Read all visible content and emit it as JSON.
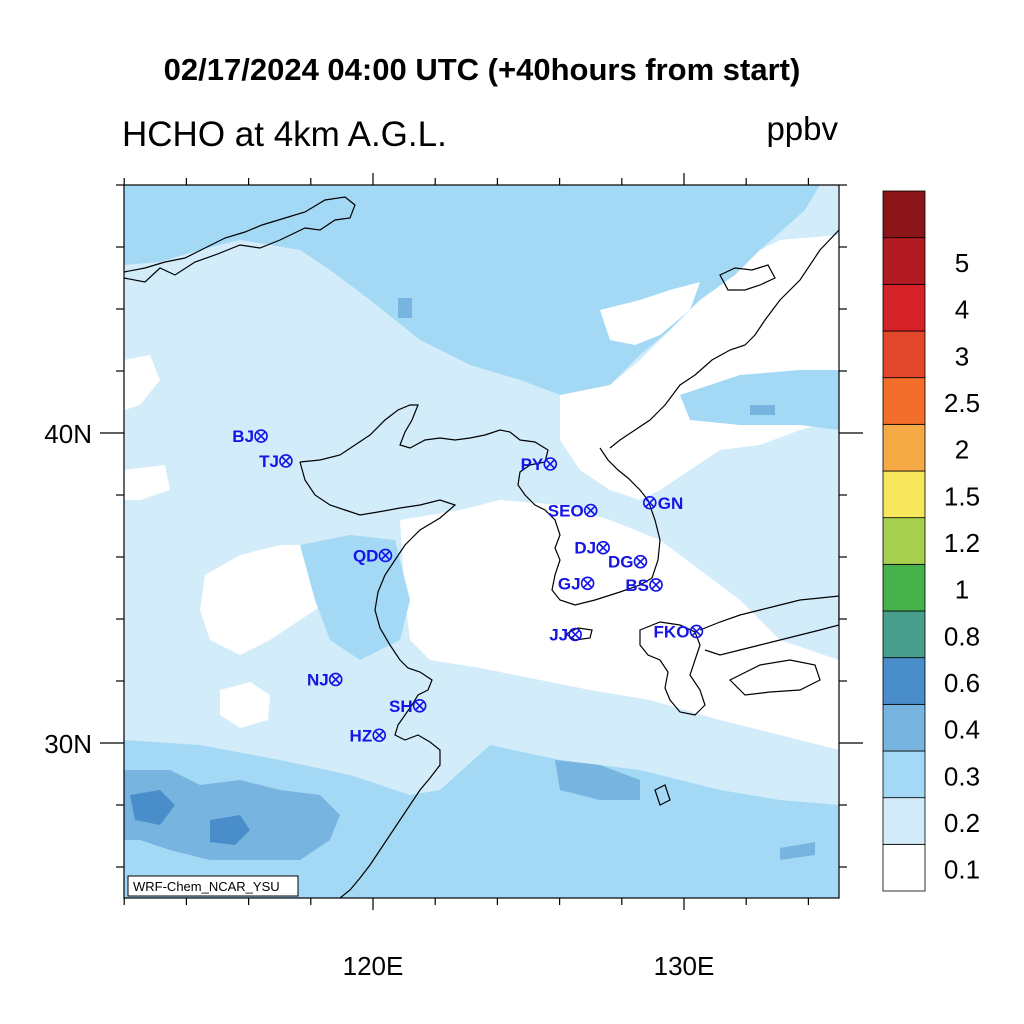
{
  "header": {
    "title": "02/17/2024 04:00 UTC (+40hours from start)",
    "subtitle": "HCHO at 4km A.G.L.",
    "units": "ppbv"
  },
  "axes": {
    "lat_labels": [
      {
        "lat": 40,
        "text": "40N"
      },
      {
        "lat": 30,
        "text": "30N"
      }
    ],
    "lon_labels": [
      {
        "lon": 120,
        "text": "120E"
      },
      {
        "lon": 130,
        "text": "130E"
      }
    ],
    "lon_range": [
      112,
      135
    ],
    "lat_range": [
      25,
      48
    ]
  },
  "credit": "WRF-Chem_NCAR_YSU",
  "colorbar": {
    "levels": [
      "0.1",
      "0.2",
      "0.3",
      "0.4",
      "0.6",
      "0.8",
      "1",
      "1.2",
      "1.5",
      "2",
      "2.5",
      "3",
      "4",
      "5"
    ],
    "colors": [
      "#ffffff",
      "#d2ecf9",
      "#a3d9f5",
      "#78b4e0",
      "#4a8dcb",
      "#479e8c",
      "#46b04a",
      "#a7cf4f",
      "#f7e75c",
      "#f6aa45",
      "#f26e2a",
      "#e2472b",
      "#d42228",
      "#b21a22",
      "#8c1519"
    ]
  },
  "stations": [
    {
      "code": "BJ",
      "lon": 116.4,
      "lat": 39.9
    },
    {
      "code": "TJ",
      "lon": 117.2,
      "lat": 39.1
    },
    {
      "code": "PY",
      "lon": 125.7,
      "lat": 39.0
    },
    {
      "code": "SEO",
      "lon": 127.0,
      "lat": 37.5
    },
    {
      "code": "GN",
      "lon": 128.9,
      "lat": 37.75
    },
    {
      "code": "DJ",
      "lon": 127.4,
      "lat": 36.3
    },
    {
      "code": "DG",
      "lon": 128.6,
      "lat": 35.85
    },
    {
      "code": "GJ",
      "lon": 126.9,
      "lat": 35.15
    },
    {
      "code": "BS",
      "lon": 129.1,
      "lat": 35.1
    },
    {
      "code": "QD",
      "lon": 120.4,
      "lat": 36.05
    },
    {
      "code": "JJ",
      "lon": 126.5,
      "lat": 33.5
    },
    {
      "code": "FKO",
      "lon": 130.4,
      "lat": 33.6
    },
    {
      "code": "NJ",
      "lon": 118.8,
      "lat": 32.05
    },
    {
      "code": "SH",
      "lon": 121.5,
      "lat": 31.2
    },
    {
      "code": "HZ",
      "lon": 120.2,
      "lat": 30.25
    }
  ]
}
